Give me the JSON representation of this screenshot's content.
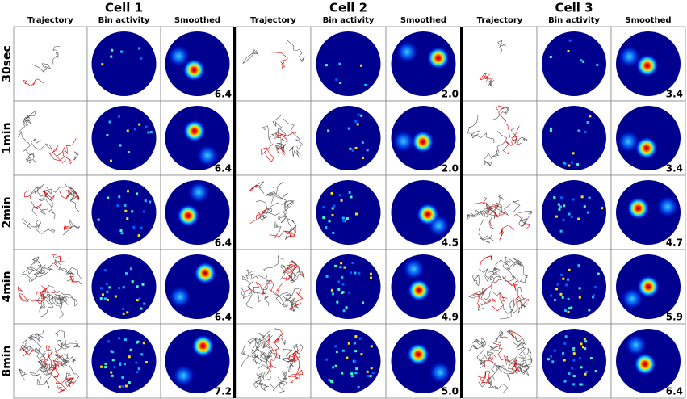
{
  "cells": [
    {
      "title": "Cell 1",
      "columns": [
        "Trajectory",
        "Bin activity",
        "Smoothed"
      ],
      "peaks": [
        "6.4",
        "6.4",
        "6.4",
        "6.4",
        "7.2"
      ]
    },
    {
      "title": "Cell 2",
      "columns": [
        "Trajectory",
        "Bin activity",
        "Smoothed"
      ],
      "peaks": [
        "2.0",
        "2.0",
        "4.5",
        "4.9",
        "5.0"
      ]
    },
    {
      "title": "Cell 3",
      "columns": [
        "Trajectory",
        "Bin activity",
        "Smoothed"
      ],
      "peaks": [
        "3.4",
        "3.4",
        "4.7",
        "5.9",
        "6.4"
      ]
    }
  ],
  "rows": [
    "30sec",
    "1min",
    "2min",
    "4min",
    "8min"
  ]
}
